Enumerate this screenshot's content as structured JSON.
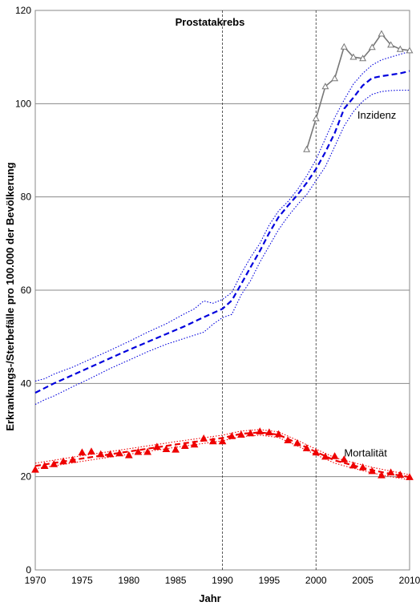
{
  "chart_data": {
    "type": "line",
    "title": "Prostatakrebs",
    "xlabel": "Jahr",
    "ylabel": "Erkrankungs-/Sterbefälle pro 100.000 der Bevölkerung",
    "xlim": [
      1970,
      2010
    ],
    "ylim": [
      0,
      120
    ],
    "xticks": [
      1970,
      1975,
      1980,
      1985,
      1990,
      1995,
      2000,
      2005,
      2010
    ],
    "yticks": [
      0,
      20,
      40,
      60,
      80,
      100,
      120
    ],
    "grid": "horizontal",
    "vlines": [
      1990,
      2000
    ],
    "annotations": [
      {
        "text": "Inzidenz",
        "x": 2006.5,
        "y": 97.5
      },
      {
        "text": "Mortalität",
        "x": 2005.3,
        "y": 25
      }
    ],
    "series": [
      {
        "role": "incidence-estimate",
        "color": "#0000dd",
        "style": "dashed",
        "x": [
          1970,
          1972,
          1974,
          1976,
          1978,
          1980,
          1982,
          1984,
          1986,
          1988,
          1990,
          1991,
          1992,
          1993,
          1994,
          1995,
          1996,
          1997,
          1998,
          1999,
          2000,
          2001,
          2002,
          2003,
          2004,
          2005,
          2006,
          2007,
          2008,
          2009,
          2010
        ],
        "y": [
          38.0,
          40.0,
          41.8,
          43.6,
          45.4,
          47.2,
          48.9,
          50.6,
          52.3,
          54.2,
          56.0,
          57.8,
          61.3,
          64.9,
          68.4,
          72.3,
          75.7,
          78.1,
          80.4,
          83.0,
          86.0,
          89.6,
          93.7,
          98.9,
          101.3,
          103.9,
          105.5,
          105.9,
          106.2,
          106.5,
          107.0
        ]
      },
      {
        "role": "incidence-upper",
        "color": "#0000dd",
        "style": "dotted",
        "x": [
          1970,
          1971,
          1972,
          1974,
          1976,
          1978,
          1980,
          1982,
          1984,
          1986,
          1987,
          1988,
          1989,
          1990,
          1991,
          1992,
          1993,
          1994,
          1995,
          1996,
          1997,
          1998,
          1999,
          2000,
          2001,
          2002,
          2003,
          2004,
          2005,
          2006,
          2007,
          2008,
          2009,
          2010
        ],
        "y": [
          40.5,
          41.0,
          42.0,
          43.5,
          45.3,
          47.1,
          49.0,
          51.0,
          52.8,
          55.0,
          56.0,
          57.7,
          57.2,
          58.0,
          59.5,
          63.5,
          67.0,
          70.0,
          74.0,
          77.0,
          79.0,
          81.5,
          84.5,
          88.0,
          92.5,
          97.0,
          100.8,
          104.2,
          106.5,
          108.3,
          109.4,
          110.0,
          110.6,
          111.2
        ]
      },
      {
        "role": "incidence-lower",
        "color": "#0000dd",
        "style": "dotted",
        "x": [
          1970,
          1971,
          1972,
          1974,
          1976,
          1978,
          1980,
          1982,
          1984,
          1986,
          1988,
          1989,
          1990,
          1991,
          1992,
          1993,
          1994,
          1995,
          1996,
          1997,
          1998,
          1999,
          2000,
          2001,
          2002,
          2003,
          2004,
          2005,
          2006,
          2007,
          2008,
          2009,
          2010
        ],
        "y": [
          35.5,
          36.5,
          37.3,
          39.3,
          41.2,
          43.2,
          45.0,
          46.8,
          48.4,
          49.7,
          51.0,
          52.7,
          54.1,
          54.8,
          59.0,
          62.0,
          66.0,
          69.5,
          73.0,
          75.8,
          78.3,
          80.5,
          83.5,
          86.5,
          90.8,
          95.2,
          98.3,
          100.5,
          102.0,
          102.6,
          102.8,
          102.9,
          102.9
        ]
      },
      {
        "role": "incidence-observed",
        "color": "#777777",
        "style": "solid",
        "marker": "triangle-open",
        "x": [
          1999,
          2000,
          2001,
          2002,
          2003,
          2004,
          2005,
          2006,
          2007,
          2008,
          2009,
          2010
        ],
        "y": [
          90.2,
          96.8,
          103.7,
          105.4,
          112.2,
          110.0,
          109.7,
          112.1,
          115.0,
          112.6,
          111.7,
          111.4
        ]
      },
      {
        "role": "mortality-estimate",
        "color": "#ee0000",
        "style": "dashed",
        "x": [
          1970,
          1975,
          1980,
          1985,
          1990,
          1992,
          1994,
          1996,
          1998,
          2000,
          2002,
          2004,
          2006,
          2008,
          2010
        ],
        "y": [
          22.3,
          23.9,
          25.4,
          26.9,
          28.3,
          29.2,
          29.5,
          29.0,
          27.2,
          25.3,
          23.5,
          22.4,
          21.4,
          20.6,
          19.9
        ]
      },
      {
        "role": "mortality-upper",
        "color": "#ee0000",
        "style": "dotted",
        "x": [
          1970,
          1975,
          1980,
          1985,
          1990,
          1992,
          1994,
          1996,
          1998,
          2000,
          2002,
          2004,
          2006,
          2008,
          2010
        ],
        "y": [
          22.9,
          24.5,
          26.0,
          27.5,
          28.9,
          29.8,
          30.1,
          29.6,
          27.8,
          25.9,
          24.1,
          23.0,
          22.0,
          21.2,
          20.4
        ]
      },
      {
        "role": "mortality-lower",
        "color": "#ee0000",
        "style": "dotted",
        "x": [
          1970,
          1975,
          1980,
          1985,
          1990,
          1992,
          1994,
          1996,
          1998,
          2000,
          2002,
          2004,
          2006,
          2008,
          2010
        ],
        "y": [
          21.7,
          23.3,
          24.8,
          26.3,
          27.7,
          28.6,
          28.9,
          28.4,
          26.6,
          24.7,
          22.9,
          21.8,
          20.8,
          20.0,
          19.3
        ]
      },
      {
        "role": "mortality-observed",
        "color": "#ee0000",
        "style": "none",
        "marker": "triangle-filled",
        "x": [
          1970,
          1971,
          1972,
          1973,
          1974,
          1975,
          1976,
          1977,
          1978,
          1979,
          1980,
          1981,
          1982,
          1983,
          1984,
          1985,
          1986,
          1987,
          1988,
          1989,
          1990,
          1991,
          1992,
          1993,
          1994,
          1995,
          1996,
          1997,
          1998,
          1999,
          2000,
          2001,
          2002,
          2003,
          2004,
          2005,
          2006,
          2007,
          2008,
          2009,
          2010
        ],
        "y": [
          21.5,
          22.3,
          22.7,
          23.3,
          23.6,
          25.2,
          25.4,
          24.8,
          24.8,
          25.0,
          24.6,
          25.3,
          25.3,
          26.4,
          25.9,
          25.8,
          26.6,
          26.9,
          28.2,
          27.6,
          27.6,
          28.7,
          29.0,
          29.3,
          29.7,
          29.5,
          29.1,
          27.8,
          27.2,
          26.1,
          25.2,
          24.3,
          24.4,
          23.7,
          22.4,
          22.0,
          21.2,
          20.3,
          20.9,
          20.4,
          19.9
        ]
      }
    ]
  }
}
